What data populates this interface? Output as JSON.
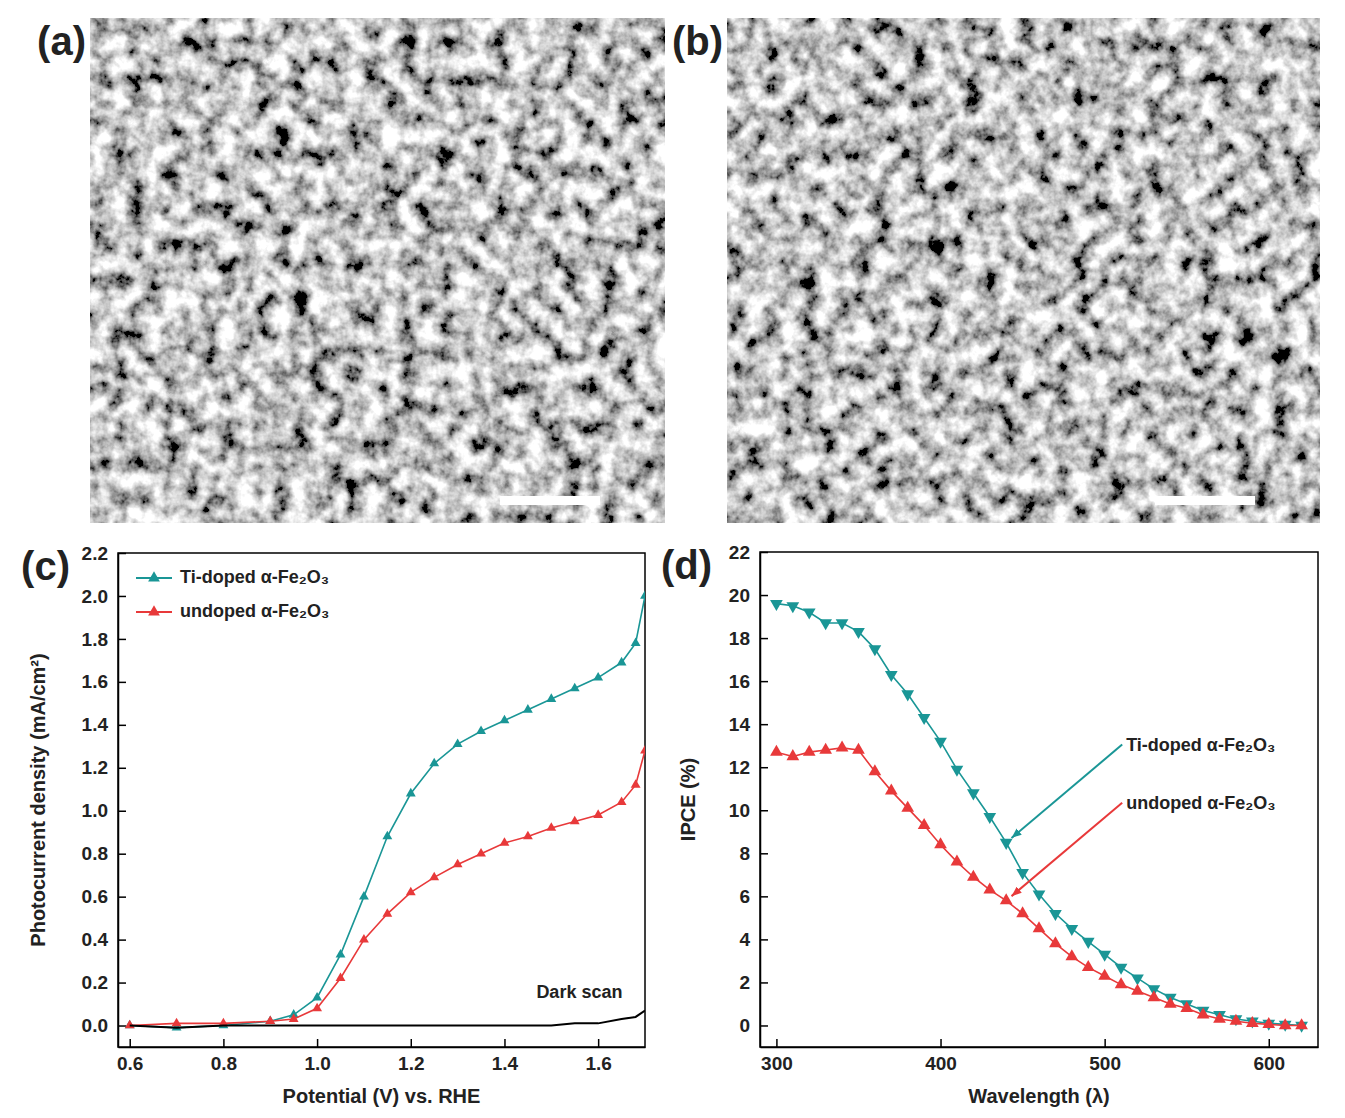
{
  "images": [
    {
      "label": "(a)"
    },
    {
      "label": "(b)"
    }
  ],
  "chart_data": [
    {
      "type": "line",
      "label": "(c)",
      "xlabel": "Potential (V) vs. RHE",
      "ylabel": "Photocurrent density (mA/cm²)",
      "xlim": [
        0.575,
        1.7
      ],
      "xticks": [
        0.6,
        0.8,
        {
          "value": 1,
          "label": "1.0"
        },
        1.2,
        1.4,
        1.6
      ],
      "ylim": [
        -0.1,
        2.2
      ],
      "yticks": [
        {
          "value": 0,
          "label": "0.0"
        },
        0.2,
        0.4,
        0.6,
        0.8,
        {
          "value": 1,
          "label": "1.0"
        },
        1.2,
        1.4,
        1.6,
        1.8,
        {
          "value": 2,
          "label": "2.0"
        },
        2.2
      ],
      "grid": false,
      "legend": "upper left",
      "x": [
        0.6,
        0.7,
        0.8,
        0.9,
        0.95,
        1.0,
        1.05,
        1.1,
        1.15,
        1.2,
        1.25,
        1.3,
        1.35,
        1.4,
        1.45,
        1.5,
        1.55,
        1.6,
        1.65,
        1.68,
        1.7
      ],
      "series": [
        {
          "name": "Ti-doped α-Fe₂O₃",
          "color": "#1a9696",
          "marker": "triangle",
          "line_style": "solid",
          "values": [
            0,
            -0.01,
            0,
            0.02,
            0.05,
            0.13,
            0.33,
            0.6,
            0.88,
            1.08,
            1.22,
            1.31,
            1.37,
            1.42,
            1.47,
            1.52,
            1.57,
            1.62,
            1.69,
            1.78,
            2.0
          ]
        },
        {
          "name": "undoped α-Fe₂O₃",
          "color": "#e8393a",
          "marker": "triangle",
          "line_style": "solid",
          "values": [
            0,
            0.01,
            0.01,
            0.02,
            0.03,
            0.08,
            0.22,
            0.4,
            0.52,
            0.62,
            0.69,
            0.75,
            0.8,
            0.85,
            0.88,
            0.92,
            0.95,
            0.98,
            1.04,
            1.12,
            1.28
          ]
        },
        {
          "color": "#000000",
          "marker": "none",
          "line_style": "solid",
          "values": [
            0,
            -0.01,
            0,
            0,
            0,
            0,
            0,
            0,
            0,
            0,
            0,
            0,
            0,
            0,
            0,
            0,
            0.01,
            0.01,
            0.03,
            0.04,
            0.07
          ]
        }
      ],
      "annotations": [
        {
          "text": "Dark scan",
          "x": 1.56,
          "y": 0.13
        }
      ]
    },
    {
      "type": "line",
      "label": "(d)",
      "xlabel": "Wavelength (λ)",
      "ylabel": "IPCE (%)",
      "xlim": [
        290,
        630
      ],
      "xticks": [
        300,
        400,
        500,
        600
      ],
      "ylim": [
        -1,
        22
      ],
      "yticks": [
        0,
        2,
        4,
        6,
        8,
        10,
        12,
        14,
        16,
        18,
        20,
        22
      ],
      "grid": false,
      "x": [
        300,
        310,
        320,
        330,
        340,
        350,
        360,
        370,
        380,
        390,
        400,
        410,
        420,
        430,
        440,
        450,
        460,
        470,
        480,
        490,
        500,
        510,
        520,
        530,
        540,
        550,
        560,
        570,
        580,
        590,
        600,
        610,
        620
      ],
      "series": [
        {
          "color": "#1a9696",
          "marker": "triangle-down",
          "line_style": "solid",
          "values": [
            19.6,
            19.5,
            19.2,
            18.7,
            18.7,
            18.3,
            17.5,
            16.3,
            15.4,
            14.3,
            13.2,
            11.9,
            10.8,
            9.7,
            8.5,
            7.1,
            6.1,
            5.2,
            4.5,
            3.9,
            3.3,
            2.7,
            2.2,
            1.7,
            1.3,
            1.0,
            0.7,
            0.5,
            0.3,
            0.2,
            0.1,
            0.05,
            0
          ]
        },
        {
          "color": "#e8393a",
          "marker": "triangle",
          "line_style": "solid",
          "values": [
            12.7,
            12.5,
            12.7,
            12.8,
            12.9,
            12.8,
            11.8,
            10.9,
            10.1,
            9.3,
            8.4,
            7.6,
            6.9,
            6.3,
            5.8,
            5.2,
            4.5,
            3.8,
            3.2,
            2.7,
            2.3,
            1.9,
            1.6,
            1.3,
            1.0,
            0.8,
            0.5,
            0.3,
            0.2,
            0.1,
            0.05,
            0,
            0
          ]
        }
      ],
      "annotations": [
        {
          "text": "Ti-doped α-Fe₂O₃",
          "x": 440,
          "y": 8.5,
          "color": "#1a9696"
        },
        {
          "text": "undoped α-Fe₂O₃",
          "x": 440,
          "y": 5.8,
          "color": "#e8393a"
        }
      ]
    }
  ]
}
